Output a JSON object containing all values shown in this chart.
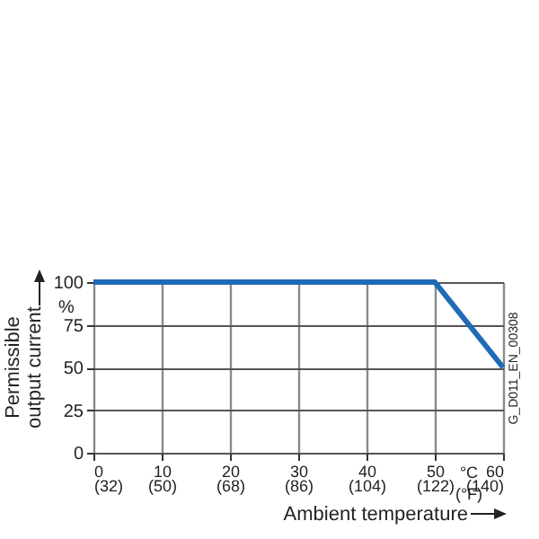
{
  "chart_data": {
    "type": "line",
    "xlabel": "Ambient temperature",
    "ylabel": "Permissible\noutput current",
    "x": [
      0,
      50,
      60
    ],
    "series": [
      {
        "color": "#1f6bb5",
        "values": [
          100,
          100,
          50
        ]
      }
    ],
    "xlim": [
      0,
      60
    ],
    "ylim": [
      0,
      100
    ],
    "xticks": [
      0,
      10,
      20,
      30,
      40,
      50,
      60
    ],
    "x2lim": [
      32,
      140
    ],
    "x2ticks": [
      {
        "value": 32,
        "label": "(32)"
      },
      {
        "value": 50,
        "label": "(50)"
      },
      {
        "value": 68,
        "label": "(68)"
      },
      {
        "value": 86,
        "label": "(86)"
      },
      {
        "value": 104,
        "label": "(104)"
      },
      {
        "value": 122,
        "label": "(122)"
      },
      {
        "value": 140,
        "label": "(140)"
      }
    ],
    "yticks": [
      0,
      25,
      50,
      75,
      100
    ],
    "grid": true,
    "marker": "none",
    "line_style": "solid",
    "annotations": [
      "%",
      "°C\n(°F)",
      "G_D011_EN_00308"
    ]
  }
}
